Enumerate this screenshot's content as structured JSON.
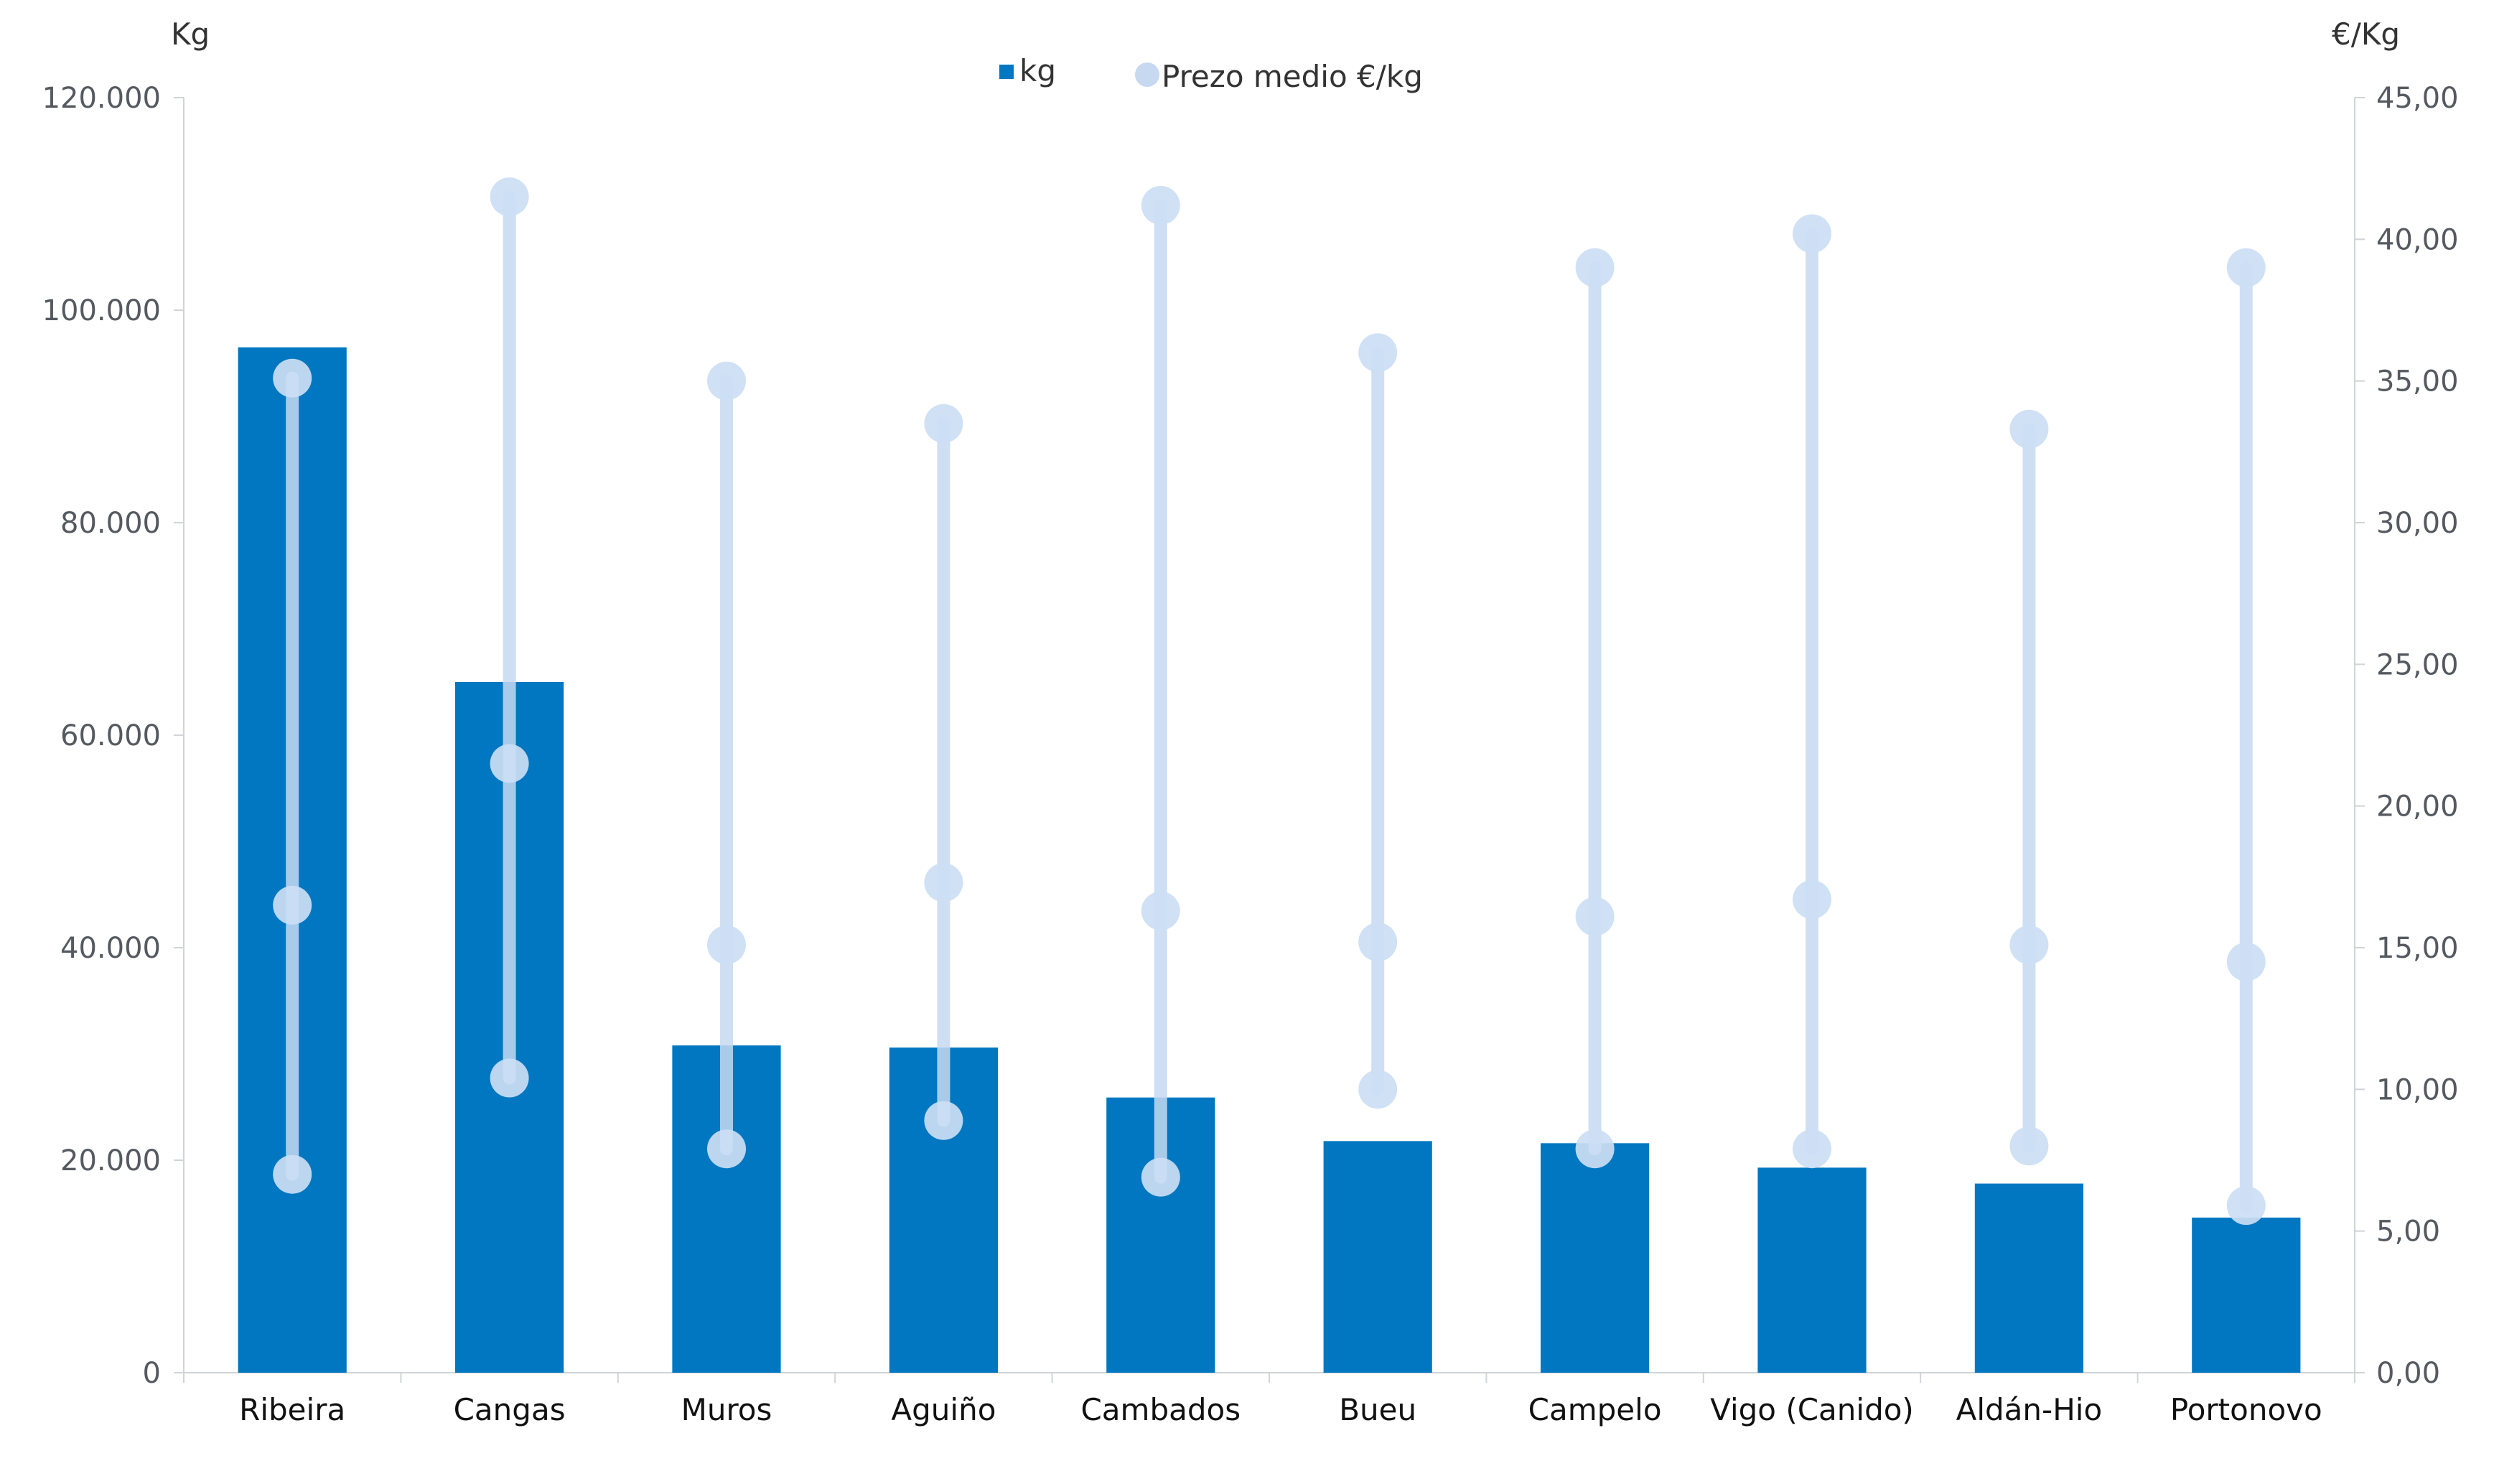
{
  "chart_data": {
    "type": "bar",
    "title": "",
    "categories": [
      "Ribeira",
      "Cangas",
      "Muros",
      "Aguiño",
      "Cambados",
      "Bueu",
      "Campelo",
      "Vigo (Canido)",
      "Aldán-Hio",
      "Portonovo"
    ],
    "y_left_label": "Kg",
    "y_right_label": "€/Kg",
    "y_left_ticks": [
      "0",
      "20.000",
      "40.000",
      "60.000",
      "80.000",
      "100.000",
      "120.000"
    ],
    "y_right_ticks": [
      "0,00",
      "5,00",
      "10,00",
      "15,00",
      "20,00",
      "25,00",
      "30,00",
      "35,00",
      "40,00",
      "45,00"
    ],
    "y_left_lim": [
      0,
      120000
    ],
    "y_right_lim": [
      0,
      45
    ],
    "legend_position": "top-center",
    "grid": false,
    "series": [
      {
        "name": "kg",
        "type": "bar",
        "axis": "left",
        "color": "#0077c0",
        "values": [
          96500,
          65000,
          30800,
          30600,
          25900,
          21800,
          21600,
          19300,
          17800,
          14600
        ]
      },
      {
        "name": "Prezo medio €/kg",
        "type": "range",
        "axis": "right",
        "color": "#c6d9f1",
        "min": [
          7.0,
          10.4,
          7.9,
          8.9,
          6.9,
          10.0,
          7.9,
          7.9,
          8.0,
          5.9
        ],
        "avg": [
          16.5,
          21.5,
          15.1,
          17.3,
          16.3,
          15.2,
          16.1,
          16.7,
          15.1,
          14.5
        ],
        "max": [
          35.1,
          41.5,
          35.0,
          33.5,
          41.2,
          36.0,
          39.0,
          40.2,
          33.3,
          39.0
        ]
      }
    ]
  }
}
